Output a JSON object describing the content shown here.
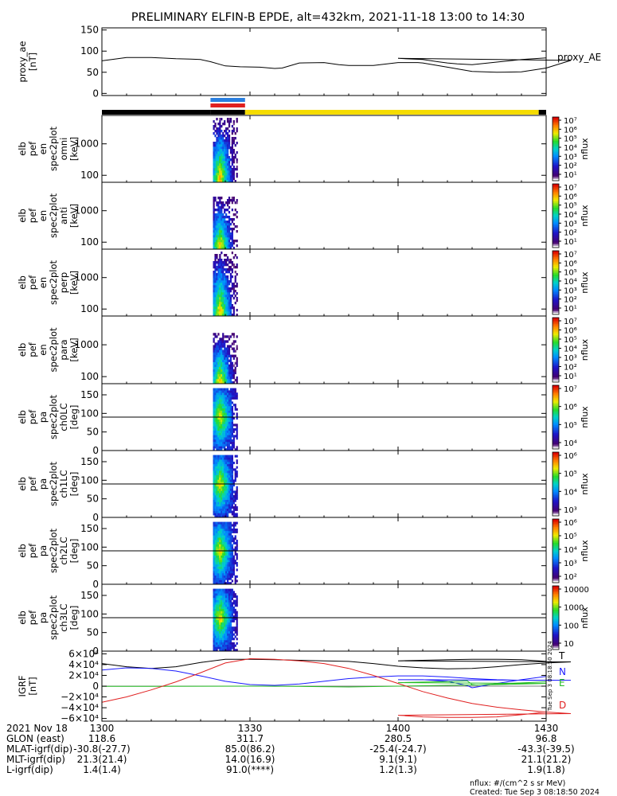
{
  "title": "PRELIMINARY ELFIN-B EPDE, alt=432km, 2021-11-18 13:00 to 14:30",
  "colors": {
    "ae_line": "#000000",
    "phase_black": "#000000",
    "phase_yellow": "#f5dc00",
    "bar_blue": "#2a7fe0",
    "bar_red": "#e02020",
    "T": "#000000",
    "N": "#1a1aff",
    "E": "#22bb22",
    "D": "#e02020"
  },
  "chart_data": [
    {
      "type": "line",
      "name": "proxy_ae",
      "ylabel_lines": [
        "proxy_ae",
        "[nT]"
      ],
      "legend": "proxy_AE",
      "ylim": [
        -5,
        155
      ],
      "yticks": [
        "150",
        "100",
        "50",
        "0"
      ],
      "ytick_values": [
        150,
        100,
        50,
        0
      ],
      "x": [
        1300.0,
        1302.0,
        1305.0,
        1310.0,
        1315.0,
        1318.0,
        1320.0,
        1322.0,
        1325.0,
        1328.0,
        1332.0,
        1335.0,
        1336.5,
        1340.0,
        1345.0,
        1348.0,
        1350.0,
        1355.0,
        1360.0,
        1364.0,
        1365.0,
        1370.0,
        1375.0,
        1380.0,
        1385.0,
        1390.0,
        1395.0,
        1400.0,
        1405.0,
        1408.0,
        1410.0,
        1412.0,
        1415.0,
        1420.0,
        1425.0,
        1430.0
      ],
      "y": [
        77,
        80,
        85,
        85,
        82,
        81,
        80,
        75,
        65,
        63,
        62,
        59,
        60,
        72,
        73,
        68,
        66,
        66,
        73,
        73,
        72,
        62,
        52,
        50,
        51,
        60,
        78,
        83,
        80,
        75,
        72,
        70,
        68,
        74,
        80,
        84
      ]
    },
    {
      "type": "heatmap",
      "name": "elb_pef_en_spec2plot_omni",
      "ylabel_lines": [
        "elb",
        "pef",
        "en",
        "spec2plot",
        "omni",
        "[keV]"
      ],
      "yscale": "log",
      "ylim": [
        60,
        8000
      ],
      "yticks": [
        "1000",
        "100"
      ],
      "ytick_values": [
        1000,
        100
      ],
      "data_x_range": [
        1322.5,
        1327.5
      ],
      "data_energy_range_keV": [
        60,
        7000
      ],
      "peak_energy_keV": 100,
      "colorbar": {
        "label": "nflux",
        "scale": "log",
        "range": [
          1,
          10000000
        ],
        "ticks": [
          "10⁷",
          "10⁶",
          "10⁵",
          "10⁴",
          "10³",
          "10²",
          "10¹"
        ]
      }
    },
    {
      "type": "heatmap",
      "name": "elb_pef_en_spec2plot_anti",
      "ylabel_lines": [
        "elb",
        "pef",
        "en",
        "spec2plot",
        "anti",
        "[keV]"
      ],
      "yscale": "log",
      "ylim": [
        60,
        8000
      ],
      "yticks": [
        "1000",
        "100"
      ],
      "ytick_values": [
        1000,
        100
      ],
      "data_x_range": [
        1322.5,
        1327.5
      ],
      "data_energy_range_keV": [
        60,
        3000
      ],
      "peak_energy_keV": 80,
      "colorbar": {
        "label": "nflux",
        "scale": "log",
        "range": [
          1,
          10000000
        ],
        "ticks": [
          "10⁷",
          "10⁶",
          "10⁵",
          "10⁴",
          "10³",
          "10²",
          "10¹"
        ]
      }
    },
    {
      "type": "heatmap",
      "name": "elb_pef_en_spec2plot_perp",
      "ylabel_lines": [
        "elb",
        "pef",
        "en",
        "spec2plot",
        "perp",
        "[keV]"
      ],
      "yscale": "log",
      "ylim": [
        60,
        8000
      ],
      "yticks": [
        "1000",
        "100"
      ],
      "ytick_values": [
        1000,
        100
      ],
      "data_x_range": [
        1322.5,
        1327.5
      ],
      "data_energy_range_keV": [
        60,
        7000
      ],
      "peak_energy_keV": 100,
      "colorbar": {
        "label": "nflux",
        "scale": "log",
        "range": [
          1,
          10000000
        ],
        "ticks": [
          "10⁷",
          "10⁶",
          "10⁵",
          "10⁴",
          "10³",
          "10²",
          "10¹"
        ]
      }
    },
    {
      "type": "heatmap",
      "name": "elb_pef_en_spec2plot_para",
      "ylabel_lines": [
        "elb",
        "pef",
        "en",
        "spec2plot",
        "para",
        "[keV]"
      ],
      "yscale": "log",
      "ylim": [
        60,
        8000
      ],
      "yticks": [
        "1000",
        "100"
      ],
      "ytick_values": [
        1000,
        100
      ],
      "data_x_range": [
        1322.5,
        1327.5
      ],
      "data_energy_range_keV": [
        60,
        2500
      ],
      "peak_energy_keV": 80,
      "colorbar": {
        "label": "nflux",
        "scale": "log",
        "range": [
          1,
          10000000
        ],
        "ticks": [
          "10⁷",
          "10⁶",
          "10⁵",
          "10⁴",
          "10³",
          "10²",
          "10¹"
        ]
      }
    },
    {
      "type": "heatmap",
      "name": "elb_pef_pa_spec2plot_ch0LC",
      "ylabel_lines": [
        "elb",
        "pef",
        "pa",
        "spec2plot",
        "ch0LC",
        "[deg]"
      ],
      "ylim": [
        0,
        180
      ],
      "yticks": [
        "150",
        "100",
        "50",
        "0"
      ],
      "ytick_values": [
        150,
        100,
        50,
        0
      ],
      "loss_cone_lines_deg": [
        90,
        180
      ],
      "data_x_range": [
        1322.5,
        1327.5
      ],
      "peak_pa_deg": 90,
      "colorbar": {
        "label": "nflux",
        "scale": "log",
        "range": [
          3000,
          10000000
        ],
        "ticks": [
          "10⁷",
          "10⁶",
          "10⁵",
          "10⁴"
        ]
      }
    },
    {
      "type": "heatmap",
      "name": "elb_pef_pa_spec2plot_ch1LC",
      "ylabel_lines": [
        "elb",
        "pef",
        "pa",
        "spec2plot",
        "ch1LC",
        "[deg]"
      ],
      "ylim": [
        0,
        180
      ],
      "yticks": [
        "150",
        "100",
        "50",
        "0"
      ],
      "ytick_values": [
        150,
        100,
        50,
        0
      ],
      "loss_cone_lines_deg": [
        90,
        180
      ],
      "data_x_range": [
        1322.5,
        1327.5
      ],
      "peak_pa_deg": 90,
      "colorbar": {
        "label": "nflux",
        "scale": "log",
        "range": [
          500,
          3000000
        ],
        "ticks": [
          "10⁶",
          "10⁵",
          "10⁴",
          "10³"
        ]
      }
    },
    {
      "type": "heatmap",
      "name": "elb_pef_pa_spec2plot_ch2LC",
      "ylabel_lines": [
        "elb",
        "pef",
        "pa",
        "spec2plot",
        "ch2LC",
        "[deg]"
      ],
      "ylim": [
        0,
        180
      ],
      "yticks": [
        "150",
        "100",
        "50",
        "0"
      ],
      "ytick_values": [
        150,
        100,
        50,
        0
      ],
      "loss_cone_lines_deg": [
        90,
        180
      ],
      "data_x_range": [
        1322.5,
        1327.5
      ],
      "peak_pa_deg": 90,
      "colorbar": {
        "label": "nflux",
        "scale": "log",
        "range": [
          60,
          3000000
        ],
        "ticks": [
          "10⁶",
          "10⁵",
          "10⁴",
          "10³",
          "10²"
        ]
      }
    },
    {
      "type": "heatmap",
      "name": "elb_pef_pa_spec2plot_ch3LC",
      "ylabel_lines": [
        "elb",
        "pef",
        "pa",
        "spec2plot",
        "ch3LC",
        "[deg]"
      ],
      "ylim": [
        0,
        180
      ],
      "yticks": [
        "150",
        "100",
        "50",
        "0"
      ],
      "ytick_values": [
        150,
        100,
        50,
        0
      ],
      "loss_cone_lines_deg": [
        90,
        180
      ],
      "data_x_range": [
        1322.5,
        1327.5
      ],
      "peak_pa_deg": 90,
      "colorbar": {
        "label": "nflux",
        "scale": "log",
        "range": [
          10,
          20000
        ],
        "ticks": [
          "10000",
          "1000",
          "100",
          "10"
        ]
      }
    },
    {
      "type": "line",
      "name": "IGRF",
      "ylabel_lines": [
        "IGRF",
        "[nT]"
      ],
      "ylim": [
        -65000,
        65000
      ],
      "yticks": [
        "6×10⁴",
        "4×10⁴",
        "2×10⁴",
        "0",
        "−2×10⁴",
        "−4×10⁴",
        "−6×10⁴"
      ],
      "ytick_values": [
        60000,
        40000,
        20000,
        0,
        -20000,
        -40000,
        -60000
      ],
      "series": [
        {
          "name": "T",
          "x": [
            1300,
            1305,
            1310,
            1315,
            1320,
            1325,
            1330,
            1335,
            1340,
            1345,
            1350,
            1355,
            1360,
            1365,
            1370,
            1375,
            1380,
            1385,
            1390,
            1395,
            1400,
            1405,
            1410,
            1415,
            1420,
            1425,
            1430
          ],
          "values": [
            42000,
            36000,
            33000,
            36000,
            44000,
            50000,
            50000,
            49000,
            48000,
            47000,
            46000,
            42000,
            37000,
            34000,
            32000,
            33000,
            36000,
            40000,
            43000,
            45000,
            47000,
            48000,
            49000,
            50000,
            50000,
            49000,
            46000
          ]
        },
        {
          "name": "N",
          "x": [
            1300,
            1305,
            1310,
            1315,
            1320,
            1325,
            1330,
            1335,
            1340,
            1345,
            1350,
            1355,
            1360,
            1365,
            1370,
            1375,
            1380,
            1385,
            1390,
            1395,
            1400,
            1405,
            1410,
            1414,
            1415,
            1416,
            1420,
            1425,
            1430
          ],
          "values": [
            30000,
            34000,
            33000,
            28000,
            19000,
            9000,
            3000,
            1500,
            4000,
            9000,
            14000,
            17000,
            19000,
            19000,
            17000,
            14000,
            12000,
            11000,
            11000,
            11000,
            12000,
            12000,
            9000,
            1000,
            -3000,
            -1500,
            5000,
            12000,
            18000
          ]
        },
        {
          "name": "E",
          "x": [
            1300,
            1310,
            1320,
            1330,
            1340,
            1350,
            1360,
            1370,
            1380,
            1390,
            1400,
            1405,
            1410,
            1414,
            1415,
            1416,
            1420,
            1425,
            1430
          ],
          "values": [
            -500,
            -300,
            -200,
            0,
            -500,
            -1500,
            0,
            1500,
            3000,
            5000,
            6500,
            7500,
            8500,
            10000,
            3000,
            2000,
            4000,
            6000,
            8000
          ]
        },
        {
          "name": "D",
          "x": [
            1300,
            1305,
            1310,
            1315,
            1320,
            1325,
            1330,
            1335,
            1340,
            1345,
            1350,
            1355,
            1360,
            1365,
            1370,
            1375,
            1380,
            1385,
            1390,
            1395,
            1400,
            1405,
            1410,
            1415,
            1420,
            1425,
            1430
          ],
          "values": [
            -30000,
            -20000,
            -7000,
            8000,
            25000,
            43000,
            51000,
            50000,
            47000,
            42000,
            33000,
            20000,
            5000,
            -10000,
            -22000,
            -32000,
            -39000,
            -44000,
            -48000,
            -51000,
            -54000,
            -57000,
            -58000,
            -58000,
            -57000,
            -53000,
            -48000
          ]
        }
      ]
    }
  ],
  "x_axis": {
    "ticks": [
      {
        "value": 1300,
        "label": "1300"
      },
      {
        "value": 1330,
        "label": "1330"
      },
      {
        "value": 1400,
        "label": "1400"
      },
      {
        "value": 1430,
        "label": "1430"
      }
    ]
  },
  "info_rows": [
    {
      "label": "2021 Nov 18",
      "values": [
        "",
        "",
        "",
        ""
      ]
    },
    {
      "label": "GLON (east)",
      "values": [
        "118.6",
        "311.7",
        "280.5",
        "96.8"
      ]
    },
    {
      "label": "MLAT-igrf(dip)",
      "values": [
        "-30.8(-27.7)",
        "85.0(86.2)",
        "-25.4(-24.7)",
        "-43.3(-39.5)"
      ]
    },
    {
      "label": "MLT-igrf(dip)",
      "values": [
        "21.3(21.4)",
        "14.0(16.9)",
        "9.1(9.1)",
        "21.1(21.2)"
      ]
    },
    {
      "label": "L-igrf(dip)",
      "values": [
        "1.4(1.4)",
        "91.0(****)",
        "1.2(1.3)",
        "1.9(1.8)"
      ]
    }
  ],
  "footer": {
    "units": "nflux: #/(cm^2 s sr MeV)",
    "created": "Created: Tue Sep  3 08:18:50 2024",
    "side_note": "Tue Sep  3 08:18:50 2024"
  }
}
